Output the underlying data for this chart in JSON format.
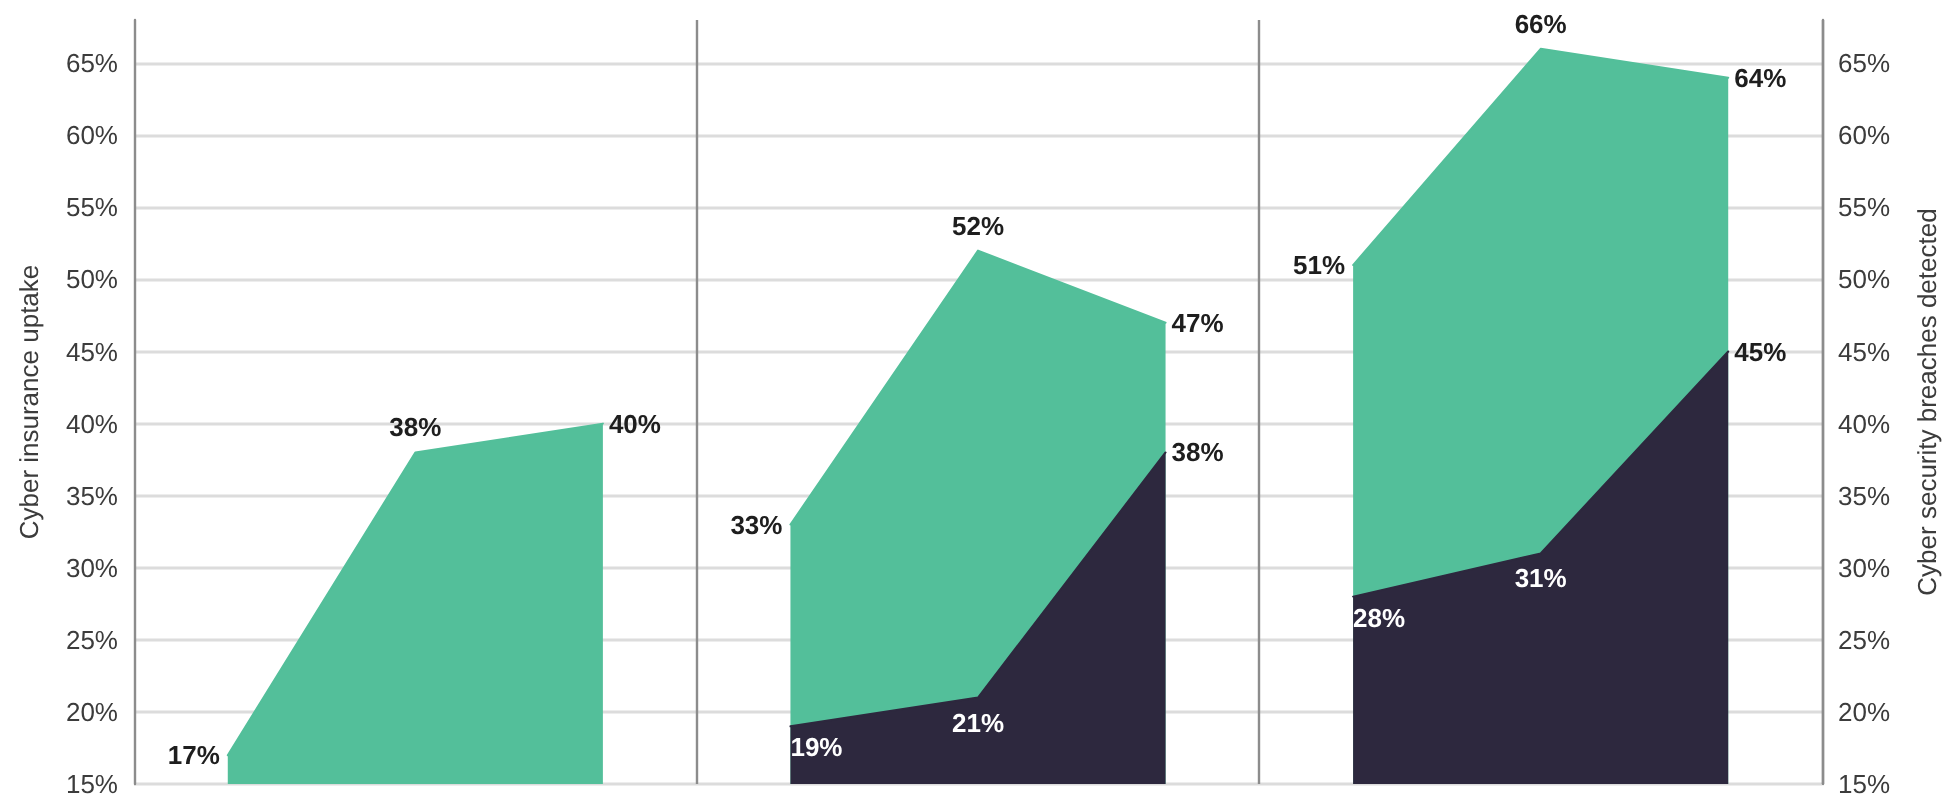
{
  "chart_data": {
    "type": "area",
    "categories": [
      null,
      null,
      null,
      null,
      null,
      null,
      null,
      null,
      null
    ],
    "ylabel": "Cyber insurance uptake",
    "y2label": "Cyber security breaches detected",
    "ylim": [
      15,
      68
    ],
    "yticks": [
      {
        "value": 15,
        "label": "15%"
      },
      {
        "value": 20,
        "label": "20%"
      },
      {
        "value": 25,
        "label": "25%"
      },
      {
        "value": 30,
        "label": "30%"
      },
      {
        "value": 35,
        "label": "35%"
      },
      {
        "value": 40,
        "label": "40%"
      },
      {
        "value": 45,
        "label": "45%"
      },
      {
        "value": 50,
        "label": "50%"
      },
      {
        "value": 55,
        "label": "55%"
      },
      {
        "value": 60,
        "label": "60%"
      },
      {
        "value": 65,
        "label": "65%"
      }
    ],
    "y2lim": [
      15,
      68
    ],
    "y2ticks": [
      {
        "value": 15,
        "label": "15%"
      },
      {
        "value": 20,
        "label": "20%"
      },
      {
        "value": 25,
        "label": "25%"
      },
      {
        "value": 30,
        "label": "30%"
      },
      {
        "value": 35,
        "label": "35%"
      },
      {
        "value": 40,
        "label": "40%"
      },
      {
        "value": 45,
        "label": "45%"
      },
      {
        "value": 50,
        "label": "50%"
      },
      {
        "value": 55,
        "label": "55%"
      },
      {
        "value": 60,
        "label": "60%"
      },
      {
        "value": 65,
        "label": "65%"
      }
    ],
    "grid": "y",
    "series": [
      {
        "color": "#53bf9a",
        "values": [
          17,
          38,
          40,
          null,
          null,
          null,
          null,
          null,
          null
        ],
        "value_labels": [
          "17%",
          "38%",
          "40%",
          null,
          null,
          null,
          null,
          null,
          null
        ]
      },
      {
        "color": "#53bf9a",
        "values": [
          null,
          null,
          null,
          33,
          52,
          47,
          null,
          null,
          null
        ],
        "value_labels": [
          null,
          null,
          null,
          "33%",
          "52%",
          "47%",
          null,
          null,
          null
        ]
      },
      {
        "color": "#53bf9a",
        "values": [
          null,
          null,
          null,
          null,
          null,
          null,
          51,
          66,
          64
        ],
        "value_labels": [
          null,
          null,
          null,
          null,
          null,
          null,
          "51%",
          "66%",
          "64%"
        ]
      },
      {
        "color": "#2d283e",
        "values": [
          null,
          null,
          null,
          19,
          21,
          38,
          null,
          null,
          null
        ],
        "value_labels": [
          null,
          null,
          null,
          "19%",
          "21%",
          "38%",
          null,
          null,
          null
        ]
      },
      {
        "color": "#2d283e",
        "values": [
          null,
          null,
          null,
          null,
          null,
          null,
          28,
          31,
          45
        ],
        "value_labels": [
          null,
          null,
          null,
          null,
          null,
          null,
          "28%",
          "31%",
          "45%"
        ]
      }
    ]
  }
}
